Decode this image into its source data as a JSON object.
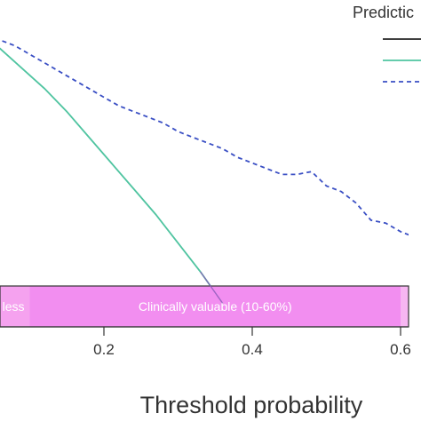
{
  "chart_data": {
    "type": "line",
    "xlabel": "Threshold probability",
    "xlim": [
      0.0,
      0.62
    ],
    "ylim": [
      0.0,
      1.0
    ],
    "x_ticks": [
      0.2,
      0.4,
      0.6
    ],
    "x_tick_labels": [
      "0.2",
      "0.4",
      "0.6"
    ],
    "legend": {
      "title": "Predictic",
      "placement": "top-right"
    },
    "series": [
      {
        "style": "solid",
        "color": "#222222",
        "x": [],
        "y": []
      },
      {
        "style": "solid",
        "color": "#4fc4a0",
        "x": [
          0.0,
          0.03,
          0.06,
          0.09,
          0.12,
          0.15,
          0.18,
          0.21,
          0.24,
          0.27,
          0.3,
          0.33,
          0.36
        ],
        "y": [
          0.95,
          0.89,
          0.83,
          0.76,
          0.69,
          0.61,
          0.52,
          0.43,
          0.34,
          0.25,
          0.15,
          0.05,
          -0.06
        ]
      },
      {
        "style": "dashed",
        "color": "#3a4fc4",
        "x": [
          0.0,
          0.02,
          0.04,
          0.06,
          0.08,
          0.1,
          0.12,
          0.14,
          0.16,
          0.18,
          0.2,
          0.22,
          0.24,
          0.26,
          0.28,
          0.3,
          0.32,
          0.34,
          0.36,
          0.38,
          0.4,
          0.42,
          0.44,
          0.46,
          0.48,
          0.5,
          0.52,
          0.54,
          0.56,
          0.58,
          0.6,
          0.62
        ],
        "y": [
          0.96,
          0.93,
          0.88,
          0.86,
          0.84,
          0.81,
          0.78,
          0.75,
          0.72,
          0.69,
          0.66,
          0.63,
          0.61,
          0.59,
          0.57,
          0.54,
          0.52,
          0.5,
          0.48,
          0.45,
          0.43,
          0.41,
          0.39,
          0.39,
          0.4,
          0.35,
          0.33,
          0.29,
          0.23,
          0.22,
          0.19,
          0.17
        ]
      }
    ],
    "bands": [
      {
        "label": "less",
        "from": 0.0,
        "to": 0.1,
        "color": "#f5a2ef"
      },
      {
        "label": "Clinically valuable (10-60%)",
        "from": 0.1,
        "to": 0.6,
        "color": "#f28ef0"
      },
      {
        "label": "",
        "from": 0.6,
        "to": 0.62,
        "color": "#f7b6f2"
      }
    ]
  }
}
